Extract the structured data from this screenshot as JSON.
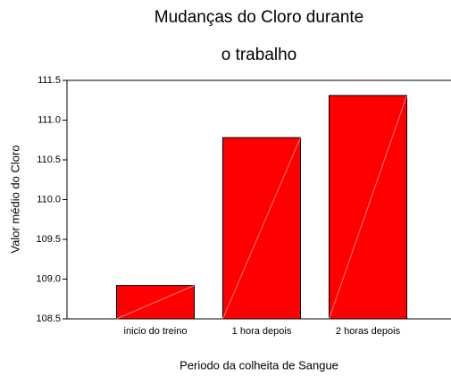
{
  "chart_data": {
    "type": "bar",
    "title": [
      "Mudanças do Cloro durante",
      "o trabalho"
    ],
    "x_label": "Periodo da colheita de Sangue",
    "y_label": "Valor médio do Cloro",
    "categories": [
      "inicio do treino",
      "1 hora depois",
      "2 horas depois"
    ],
    "values": [
      108.92,
      110.78,
      111.31
    ],
    "color": "#ff0000",
    "ylim": [
      108.5,
      111.5
    ],
    "yticks": [
      108.5,
      {
        "value": 109,
        "label": "109.0"
      },
      109.5,
      {
        "value": 110,
        "label": "110.0"
      },
      110.5,
      {
        "value": 111,
        "label": "111.0"
      },
      111.5
    ]
  }
}
